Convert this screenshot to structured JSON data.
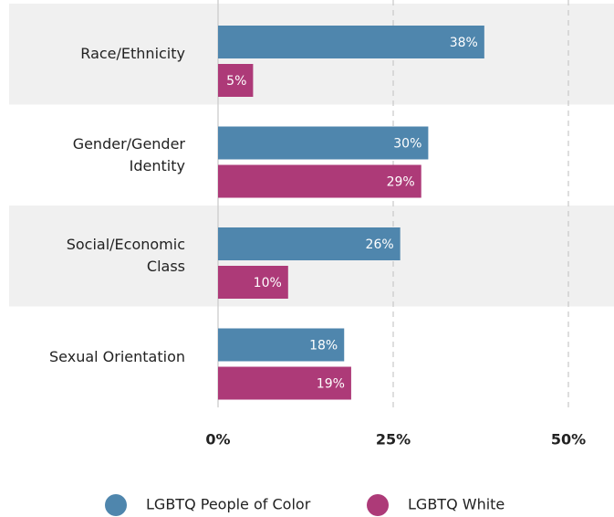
{
  "chart_data": {
    "type": "bar",
    "orientation": "horizontal",
    "categories": [
      "Race/Ethnicity",
      "Gender/Gender Identity",
      "Social/Economic Class",
      "Sexual Orientation"
    ],
    "series": [
      {
        "name": "LGBTQ People of Color",
        "color": "#4f86ad",
        "values": [
          38,
          30,
          26,
          18
        ],
        "value_labels": [
          "38%",
          "30%",
          "26%",
          "18%"
        ]
      },
      {
        "name": "LGBTQ White",
        "color": "#ad3a78",
        "values": [
          5,
          29,
          10,
          19
        ],
        "value_labels": [
          "5%",
          "29%",
          "10%",
          "19%"
        ]
      }
    ],
    "xlim": [
      0,
      50
    ],
    "xticks": [
      {
        "value": 0,
        "label": "0%"
      },
      {
        "value": 25,
        "label": "25%"
      },
      {
        "value": 50,
        "label": "50%"
      }
    ],
    "grid": true,
    "legend": "bottom"
  }
}
